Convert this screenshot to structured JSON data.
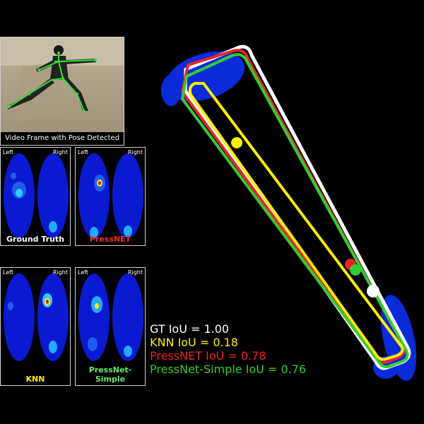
{
  "video": {
    "caption": "Video Frame with Pose Detected"
  },
  "panels": {
    "foot_left_label": "Left",
    "foot_right_label": "Right",
    "ground_truth": "Ground Truth",
    "pressnet": "PressNET",
    "knn": "KNN",
    "pressnet_simple": "PressNet-Simple"
  },
  "legend": {
    "gt": "GT IoU = 1.00",
    "knn": "KNN IoU = 0.18",
    "pressnet": "PressNET IoU = 0.78",
    "pressnet_simple": "PressNet-Simple IoU = 0.76"
  },
  "colors": {
    "gt": "#ffffff",
    "knn": "#ffee00",
    "pressnet": "#ee2222",
    "pressnet_simple": "#33cc33",
    "heatmap_base": "#0a1ad0"
  }
}
